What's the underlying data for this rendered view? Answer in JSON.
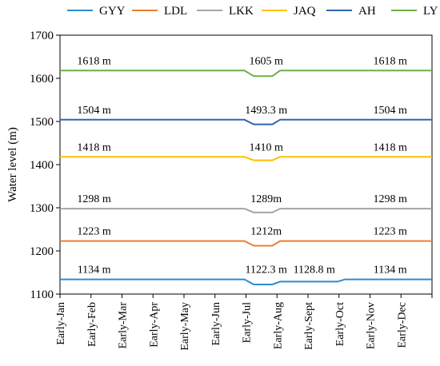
{
  "chart_data": {
    "type": "line",
    "ylabel": "Water level (m)",
    "xlabel": "",
    "ylim": [
      1100,
      1700
    ],
    "yticks": [
      1100,
      1200,
      1300,
      1400,
      1500,
      1600,
      1700
    ],
    "categories": [
      "Early-Jan",
      "Early-Feb",
      "Early-Mar",
      "Early-Apr",
      "Early-May",
      "Early-Jun",
      "Early-Jul",
      "Early-Aug",
      "Early-Sept",
      "Early-Oct",
      "Early-Nov",
      "Early-Dec"
    ],
    "x_range": [
      0,
      12
    ],
    "grid": false,
    "legend_position": "top",
    "series": [
      {
        "name": "GYY",
        "color": "#2e8bd0",
        "points": [
          [
            0,
            1134
          ],
          [
            5.95,
            1134
          ],
          [
            6.25,
            1122.3
          ],
          [
            6.85,
            1122.3
          ],
          [
            7.1,
            1128.8
          ],
          [
            8.95,
            1128.8
          ],
          [
            9.2,
            1134
          ],
          [
            12,
            1134
          ]
        ],
        "labels": [
          {
            "x": 1.1,
            "text": "1134 m"
          },
          {
            "x": 6.65,
            "text": "1122.3 m"
          },
          {
            "x": 8.2,
            "text": "1128.8 m"
          },
          {
            "x": 10.65,
            "text": "1134 m"
          }
        ]
      },
      {
        "name": "LDL",
        "color": "#ed7d31",
        "points": [
          [
            0,
            1223
          ],
          [
            5.95,
            1223
          ],
          [
            6.25,
            1212
          ],
          [
            6.85,
            1212
          ],
          [
            7.1,
            1223
          ],
          [
            12,
            1223
          ]
        ],
        "labels": [
          {
            "x": 1.1,
            "text": "1223 m"
          },
          {
            "x": 6.65,
            "text": "1212m"
          },
          {
            "x": 10.65,
            "text": "1223 m"
          }
        ]
      },
      {
        "name": "LKK",
        "color": "#a5a5a5",
        "points": [
          [
            0,
            1298
          ],
          [
            5.95,
            1298
          ],
          [
            6.25,
            1289
          ],
          [
            6.85,
            1289
          ],
          [
            7.1,
            1298
          ],
          [
            12,
            1298
          ]
        ],
        "labels": [
          {
            "x": 1.1,
            "text": "1298 m"
          },
          {
            "x": 6.65,
            "text": "1289m"
          },
          {
            "x": 10.65,
            "text": "1298 m"
          }
        ]
      },
      {
        "name": "JAQ",
        "color": "#ffc000",
        "points": [
          [
            0,
            1418
          ],
          [
            5.95,
            1418
          ],
          [
            6.25,
            1410
          ],
          [
            6.85,
            1410
          ],
          [
            7.1,
            1418
          ],
          [
            12,
            1418
          ]
        ],
        "labels": [
          {
            "x": 1.1,
            "text": "1418 m"
          },
          {
            "x": 6.65,
            "text": "1410 m"
          },
          {
            "x": 10.65,
            "text": "1418 m"
          }
        ]
      },
      {
        "name": "AH",
        "color": "#2f65b0",
        "points": [
          [
            0,
            1504
          ],
          [
            5.95,
            1504
          ],
          [
            6.25,
            1493.3
          ],
          [
            6.85,
            1493.3
          ],
          [
            7.1,
            1504
          ],
          [
            12,
            1504
          ]
        ],
        "labels": [
          {
            "x": 1.1,
            "text": "1504 m"
          },
          {
            "x": 6.65,
            "text": "1493.3 m"
          },
          {
            "x": 10.65,
            "text": "1504 m"
          }
        ]
      },
      {
        "name": "LY",
        "color": "#70ad47",
        "points": [
          [
            0,
            1618
          ],
          [
            5.95,
            1618
          ],
          [
            6.25,
            1605
          ],
          [
            6.85,
            1605
          ],
          [
            7.1,
            1618
          ],
          [
            12,
            1618
          ]
        ],
        "labels": [
          {
            "x": 1.1,
            "text": "1618 m"
          },
          {
            "x": 6.65,
            "text": "1605 m"
          },
          {
            "x": 10.65,
            "text": "1618 m"
          }
        ]
      }
    ]
  }
}
